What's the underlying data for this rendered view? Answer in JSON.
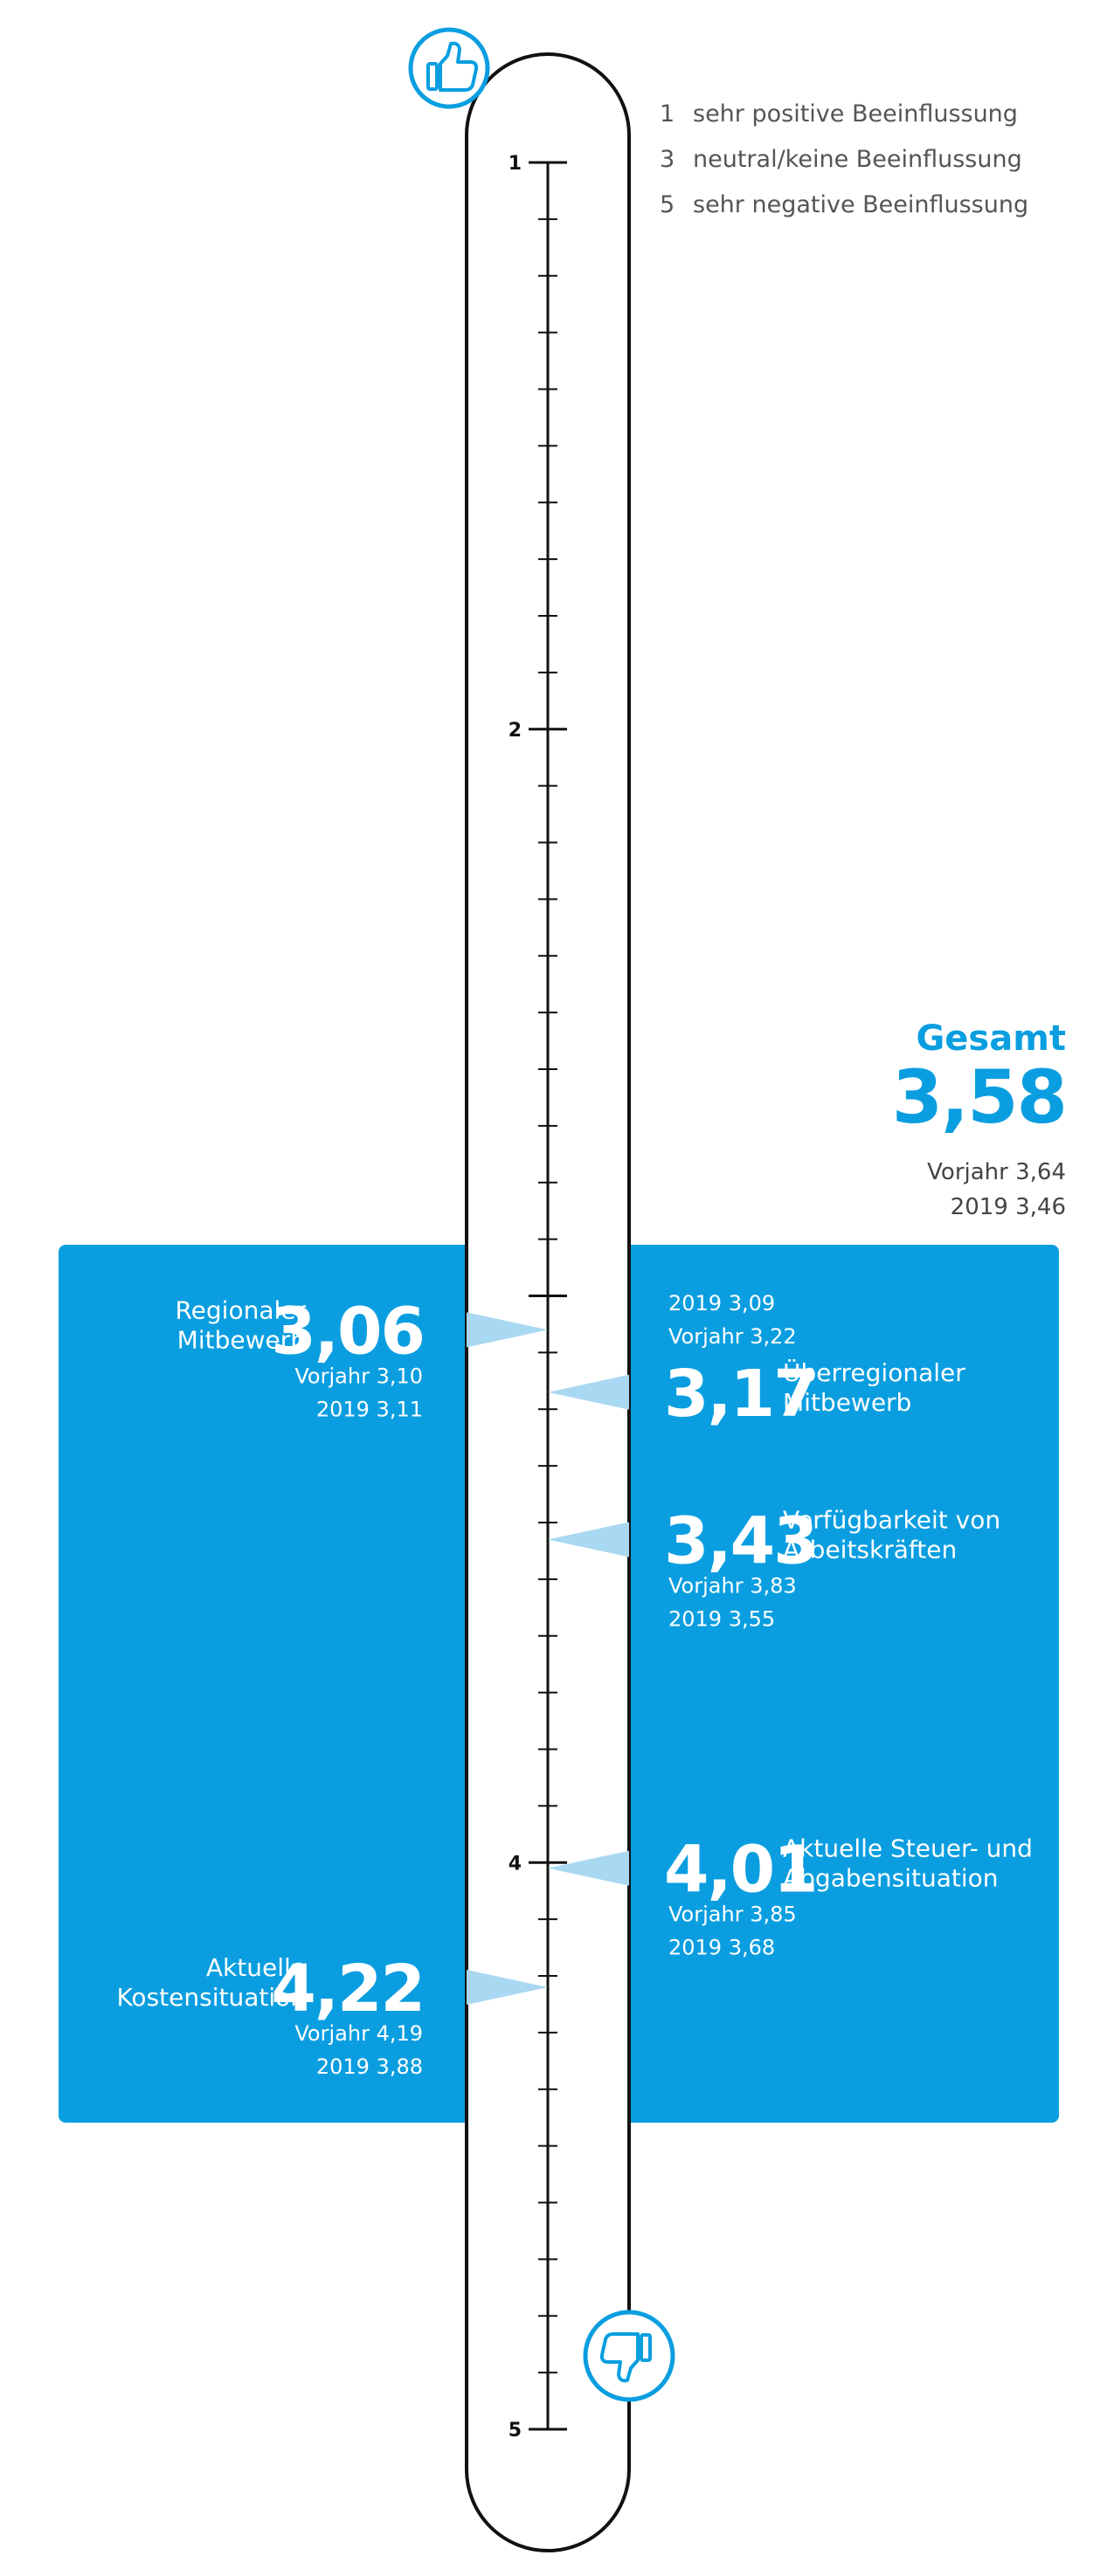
{
  "legend": [
    {
      "key": "1",
      "text": "sehr positive Beeinflussung"
    },
    {
      "key": "3",
      "text": "neutral/keine Beeinflussung"
    },
    {
      "key": "5",
      "text": "sehr negative Beeinflussung"
    }
  ],
  "icons": {
    "top": "thumbs-up-icon",
    "bottom": "thumbs-down-icon"
  },
  "colors": {
    "accent": "#0a9ee0",
    "pointer": "#a9d8f3",
    "axis": "#111111",
    "legend_text": "#555555"
  },
  "chart_data": {
    "type": "scale",
    "ylim": [
      1,
      5
    ],
    "major_ticks": [
      "1",
      "2",
      "4",
      "5"
    ],
    "minor_tick_step": 0.1,
    "total": {
      "label": "Gesamt",
      "value": "3,58",
      "prev": "Vorjahr 3,64",
      "y2019": "2019 3,46",
      "num": 3.58
    },
    "items": [
      {
        "label_lines": [
          "Regionaler",
          "Mitbewerb"
        ],
        "value": "3,06",
        "num": 3.06,
        "side": "left",
        "prev": "Vorjahr 3,10",
        "y2019": "2019 3,11"
      },
      {
        "label_lines": [
          "Überregionaler",
          "Mitbewerb"
        ],
        "value": "3,17",
        "num": 3.17,
        "side": "right",
        "prev": "Vorjahr 3,22",
        "y2019": "2019 3,09"
      },
      {
        "label_lines": [
          "Verfügbarkeit von",
          "Arbeitskräften"
        ],
        "value": "3,43",
        "num": 3.43,
        "side": "right",
        "prev": "Vorjahr 3,83",
        "y2019": "2019 3,55"
      },
      {
        "label_lines": [
          "Aktuelle Steuer- und",
          "Abgabensituation"
        ],
        "value": "4,01",
        "num": 4.01,
        "side": "right",
        "prev": "Vorjahr 3,85",
        "y2019": "2019 3,68"
      },
      {
        "label_lines": [
          "Aktuelle",
          "Kostensituation"
        ],
        "value": "4,22",
        "num": 4.22,
        "side": "left",
        "prev": "Vorjahr 4,19",
        "y2019": "2019 3,88"
      }
    ]
  }
}
